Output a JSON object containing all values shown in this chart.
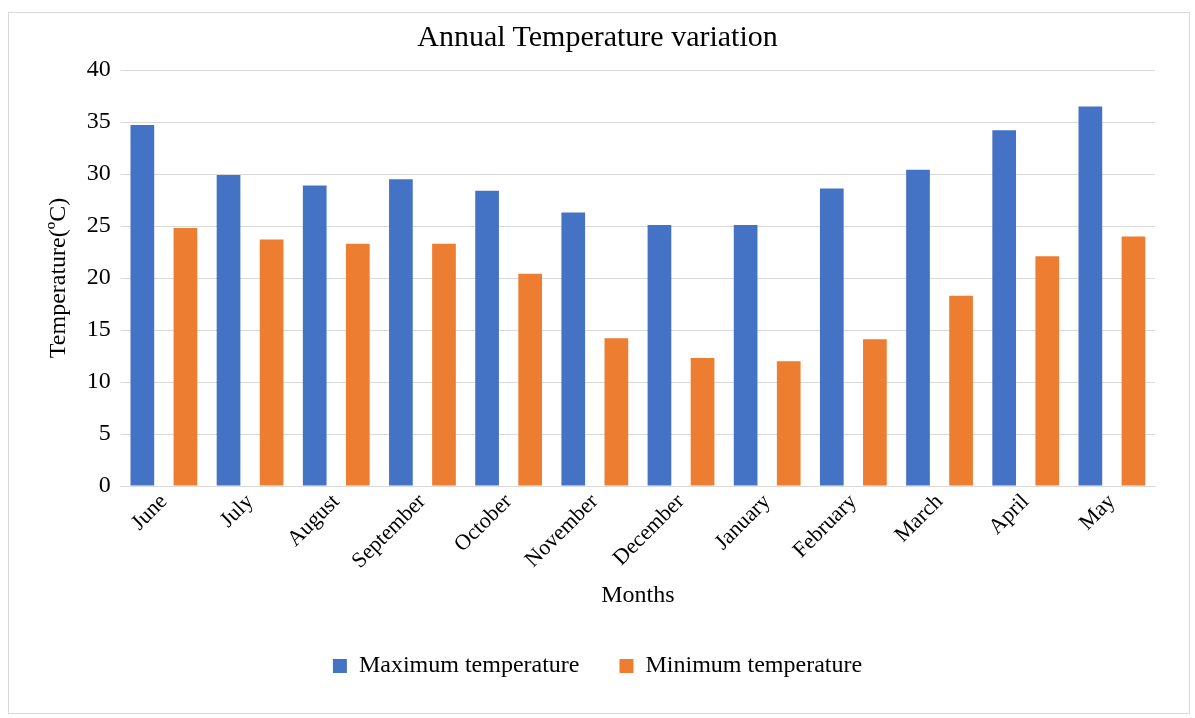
{
  "chart_data": {
    "type": "bar",
    "title": "Annual Temperature variation",
    "xlabel": "Months",
    "ylabel": "Temperature(ºC)",
    "categories": [
      "June",
      "July",
      "August",
      "September",
      "October",
      "November",
      "December",
      "January",
      "February",
      "March",
      "April",
      "May"
    ],
    "series": [
      {
        "name": "Maximum temperature",
        "color": "#4472c4",
        "values": [
          34.7,
          29.9,
          28.9,
          29.5,
          28.4,
          26.3,
          25.1,
          25.1,
          28.6,
          30.4,
          34.2,
          36.5
        ]
      },
      {
        "name": "Minimum temperature",
        "color": "#ed7d31",
        "values": [
          24.8,
          23.7,
          23.3,
          23.3,
          20.4,
          14.2,
          12.3,
          12.0,
          14.1,
          18.3,
          22.1,
          24.0
        ]
      }
    ],
    "ylim": [
      0,
      40
    ],
    "yticks": [
      0,
      5,
      10,
      15,
      20,
      25,
      30,
      35,
      40
    ],
    "grid": "y",
    "legend": "bottom"
  }
}
